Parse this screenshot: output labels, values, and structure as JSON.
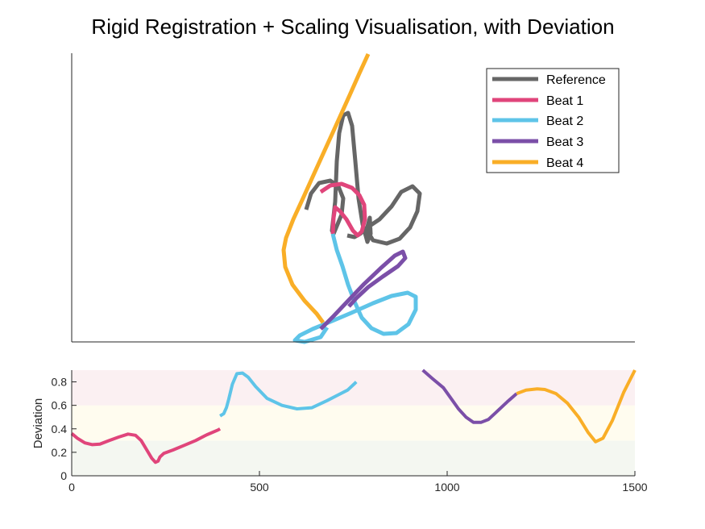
{
  "chart_data": [
    {
      "type": "line",
      "title": "Rigid Registration + Scaling Visualisation, with Deviation",
      "xlabel": "",
      "ylabel": "",
      "axes_ticks": "hidden",
      "legend_position": "top-right",
      "series": [
        {
          "name": "Reference",
          "color": "#666666",
          "points": [
            [
              380,
              260
            ],
            [
              386,
              240
            ],
            [
              396,
              227
            ],
            [
              410,
              224
            ],
            [
              420,
              231
            ],
            [
              426,
              246
            ],
            [
              424,
              266
            ],
            [
              414,
              290
            ],
            [
              412,
              286
            ],
            [
              416,
              250
            ],
            [
              418,
              200
            ],
            [
              421,
              165
            ],
            [
              426,
              143
            ],
            [
              432,
              140
            ],
            [
              437,
              156
            ],
            [
              441,
              200
            ],
            [
              445,
              246
            ],
            [
              450,
              278
            ],
            [
              456,
              300
            ],
            [
              460,
              290
            ],
            [
              459,
              270
            ],
            [
              455,
              285
            ],
            [
              463,
              298
            ],
            [
              480,
              302
            ],
            [
              496,
              296
            ],
            [
              509,
              282
            ],
            [
              518,
              262
            ],
            [
              521,
              240
            ],
            [
              512,
              231
            ],
            [
              498,
              238
            ],
            [
              486,
              256
            ],
            [
              471,
              272
            ],
            [
              456,
              282
            ],
            [
              447,
              290
            ],
            [
              440,
              294
            ],
            [
              431,
              292
            ]
          ]
        },
        {
          "name": "Beat 1",
          "color": "#e0457b",
          "points": [
            [
              398,
              238
            ],
            [
              410,
              230
            ],
            [
              424,
              228
            ],
            [
              437,
              233
            ],
            [
              446,
              242
            ],
            [
              452,
              254
            ],
            [
              453,
              272
            ],
            [
              449,
              287
            ],
            [
              444,
              292
            ],
            [
              438,
              286
            ],
            [
              430,
              272
            ],
            [
              422,
              262
            ],
            [
              416,
              257
            ],
            [
              414,
              270
            ],
            [
              413,
              290
            ]
          ]
        },
        {
          "name": "Beat 2",
          "color": "#5ec4e8",
          "points": [
            [
              413,
              290
            ],
            [
              418,
              310
            ],
            [
              425,
              330
            ],
            [
              432,
              353
            ],
            [
              440,
              374
            ],
            [
              449,
              394
            ],
            [
              461,
              407
            ],
            [
              476,
              414
            ],
            [
              492,
              413
            ],
            [
              507,
              402
            ],
            [
              516,
              384
            ],
            [
              516,
              368
            ],
            [
              506,
              363
            ],
            [
              486,
              367
            ],
            [
              463,
              376
            ],
            [
              436,
              388
            ],
            [
              410,
              399
            ],
            [
              388,
              408
            ],
            [
              372,
              416
            ],
            [
              366,
              422
            ],
            [
              378,
              424
            ],
            [
              398,
              418
            ],
            [
              406,
              406
            ]
          ]
        },
        {
          "name": "Beat 3",
          "color": "#7b4fa8",
          "points": [
            [
              398,
              408
            ],
            [
              414,
              392
            ],
            [
              432,
              373
            ],
            [
              452,
              352
            ],
            [
              472,
              333
            ],
            [
              490,
              317
            ],
            [
              500,
              312
            ],
            [
              503,
              320
            ],
            [
              494,
              330
            ],
            [
              475,
              343
            ],
            [
              457,
              356
            ],
            [
              443,
              369
            ],
            [
              433,
              380
            ]
          ]
        },
        {
          "name": "Beat 4",
          "color": "#f9ae27",
          "points": [
            [
              401,
              400
            ],
            [
              393,
              389
            ],
            [
              378,
              373
            ],
            [
              363,
              353
            ],
            [
              354,
              331
            ],
            [
              352,
              310
            ],
            [
              355,
              295
            ],
            [
              364,
              272
            ],
            [
              376,
              246
            ],
            [
              390,
              215
            ],
            [
              405,
              182
            ],
            [
              420,
              149
            ],
            [
              434,
              118
            ],
            [
              446,
              91
            ],
            [
              457,
              67
            ]
          ]
        }
      ]
    },
    {
      "type": "line",
      "title": "",
      "xlabel": "",
      "ylabel": "Deviation",
      "xlim": [
        0,
        1500
      ],
      "ylim": [
        0,
        0.9
      ],
      "x_ticks": [
        "0",
        "500",
        "1000",
        "1500"
      ],
      "y_ticks": [
        "0",
        "0.2",
        "0.4",
        "0.6",
        "0.8"
      ],
      "bands": [
        {
          "from": 0,
          "to": 0.3,
          "color": "#f4f7f1"
        },
        {
          "from": 0.3,
          "to": 0.6,
          "color": "#fffcef"
        },
        {
          "from": 0.6,
          "to": 0.9,
          "color": "#fbf0f2"
        }
      ],
      "series": [
        {
          "name": "Beat 1",
          "color": "#e0457b",
          "x": [
            0,
            15,
            35,
            55,
            75,
            100,
            125,
            150,
            170,
            185,
            200,
            213,
            223,
            230,
            235,
            245,
            270,
            300,
            330,
            360,
            390,
            395
          ],
          "y": [
            0.36,
            0.32,
            0.28,
            0.265,
            0.27,
            0.3,
            0.33,
            0.355,
            0.345,
            0.3,
            0.22,
            0.15,
            0.115,
            0.125,
            0.16,
            0.19,
            0.22,
            0.26,
            0.3,
            0.35,
            0.39,
            0.4
          ]
        },
        {
          "name": "Beat 2",
          "color": "#5ec4e8",
          "x": [
            395,
            405,
            412,
            418,
            428,
            440,
            455,
            470,
            490,
            520,
            560,
            600,
            640,
            680,
            710,
            735,
            755,
            758
          ],
          "y": [
            0.51,
            0.53,
            0.58,
            0.65,
            0.78,
            0.87,
            0.875,
            0.84,
            0.76,
            0.66,
            0.6,
            0.57,
            0.58,
            0.64,
            0.69,
            0.73,
            0.79,
            0.8
          ]
        },
        {
          "name": "Beat 3",
          "color": "#7b4fa8",
          "x": [
            935,
            960,
            990,
            1010,
            1030,
            1050,
            1070,
            1090,
            1110,
            1130,
            1160,
            1185
          ],
          "y": [
            0.9,
            0.83,
            0.75,
            0.66,
            0.57,
            0.5,
            0.455,
            0.455,
            0.48,
            0.54,
            0.63,
            0.7
          ]
        },
        {
          "name": "Beat 4",
          "color": "#f9ae27",
          "x": [
            1185,
            1210,
            1240,
            1260,
            1290,
            1320,
            1350,
            1375,
            1395,
            1415,
            1440,
            1470,
            1500
          ],
          "y": [
            0.7,
            0.73,
            0.74,
            0.735,
            0.7,
            0.62,
            0.5,
            0.37,
            0.29,
            0.32,
            0.47,
            0.71,
            0.9
          ]
        }
      ]
    }
  ]
}
